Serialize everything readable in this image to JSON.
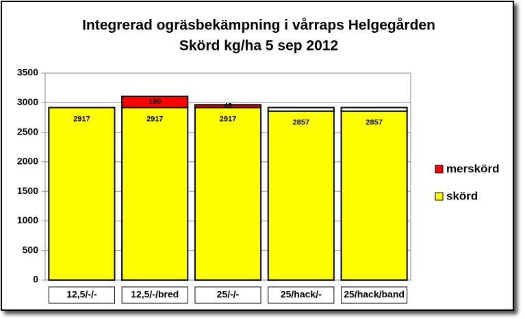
{
  "chart_data": {
    "type": "stacked-bar",
    "title": "Integrerad ogräsbekämpning  i vårraps Helgegården",
    "subtitle": "Skörd kg/ha 5 sep 2012",
    "categories": [
      "12,5/-/-",
      "12,5/-/bred",
      "25/-/-",
      "25/hack/-",
      "25/hack/band"
    ],
    "series": [
      {
        "name": "skörd",
        "color": "#ffff00",
        "values": [
          2917,
          2917,
          2917,
          2857,
          2857
        ],
        "show_labels": true
      },
      {
        "name": "merskörd",
        "color": "#ff0000",
        "values": [
          null,
          190,
          48,
          null,
          null
        ],
        "show_labels": true
      },
      {
        "color": "#ffffff",
        "values": [
          null,
          null,
          null,
          60,
          60
        ],
        "show_labels": false
      }
    ],
    "ylim": [
      0,
      3500
    ],
    "yticks": [
      0,
      500,
      1000,
      1500,
      2000,
      2500,
      3000,
      3500
    ],
    "grid": true,
    "legend": "right"
  }
}
